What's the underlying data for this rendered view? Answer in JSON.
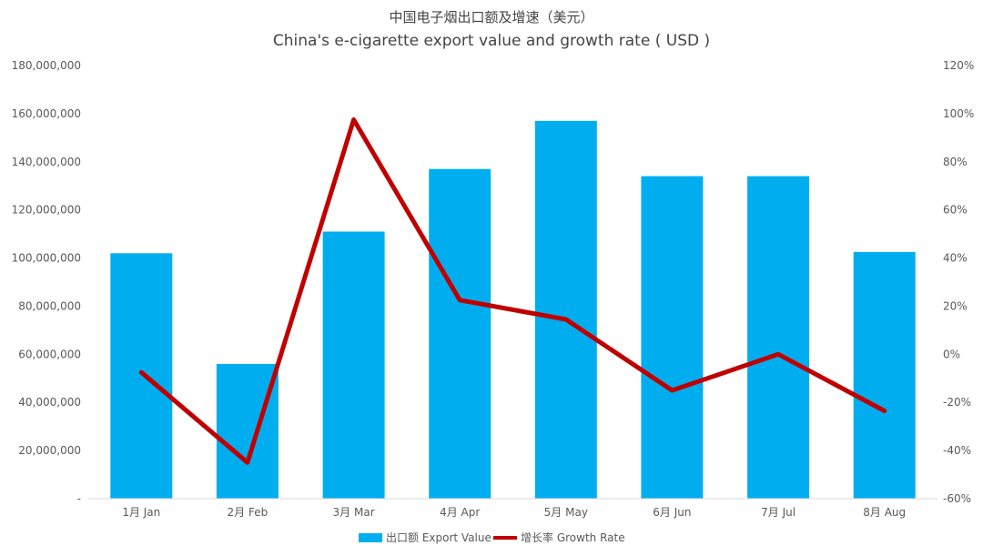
{
  "chart_data": {
    "type": "bar",
    "title": "中国电子烟出口额及增速（美元）",
    "subtitle": "China's e-cigarette export value and growth rate ( USD )",
    "categories": [
      "1月 Jan",
      "2月 Feb",
      "3月 Mar",
      "4月 Apr",
      "5月 May",
      "6月 Jun",
      "7月 Jul",
      "8月 Aug"
    ],
    "series": [
      {
        "name": "出口额 Export Value",
        "type": "bar",
        "axis": "left",
        "color": "#00aeef",
        "values": [
          102000000,
          56000000,
          111000000,
          137000000,
          157000000,
          134000000,
          134000000,
          102500000
        ]
      },
      {
        "name": "增长率 Growth Rate",
        "type": "line",
        "axis": "right",
        "color": "#c00000",
        "values": [
          -0.075,
          -0.45,
          0.975,
          0.225,
          0.145,
          -0.15,
          0.0,
          -0.235
        ]
      }
    ],
    "y_left": {
      "min": 0,
      "max": 180000000,
      "tick_labels": [
        "-",
        "20,000,000",
        "40,000,000",
        "60,000,000",
        "80,000,000",
        "100,000,000",
        "120,000,000",
        "140,000,000",
        "160,000,000",
        "180,000,000"
      ]
    },
    "y_right": {
      "min": -0.6,
      "max": 1.2,
      "tick_labels": [
        "-60%",
        "-40%",
        "-20%",
        "0%",
        "20%",
        "40%",
        "60%",
        "80%",
        "100%",
        "120%"
      ]
    },
    "grid": false,
    "legend_position": "bottom"
  }
}
